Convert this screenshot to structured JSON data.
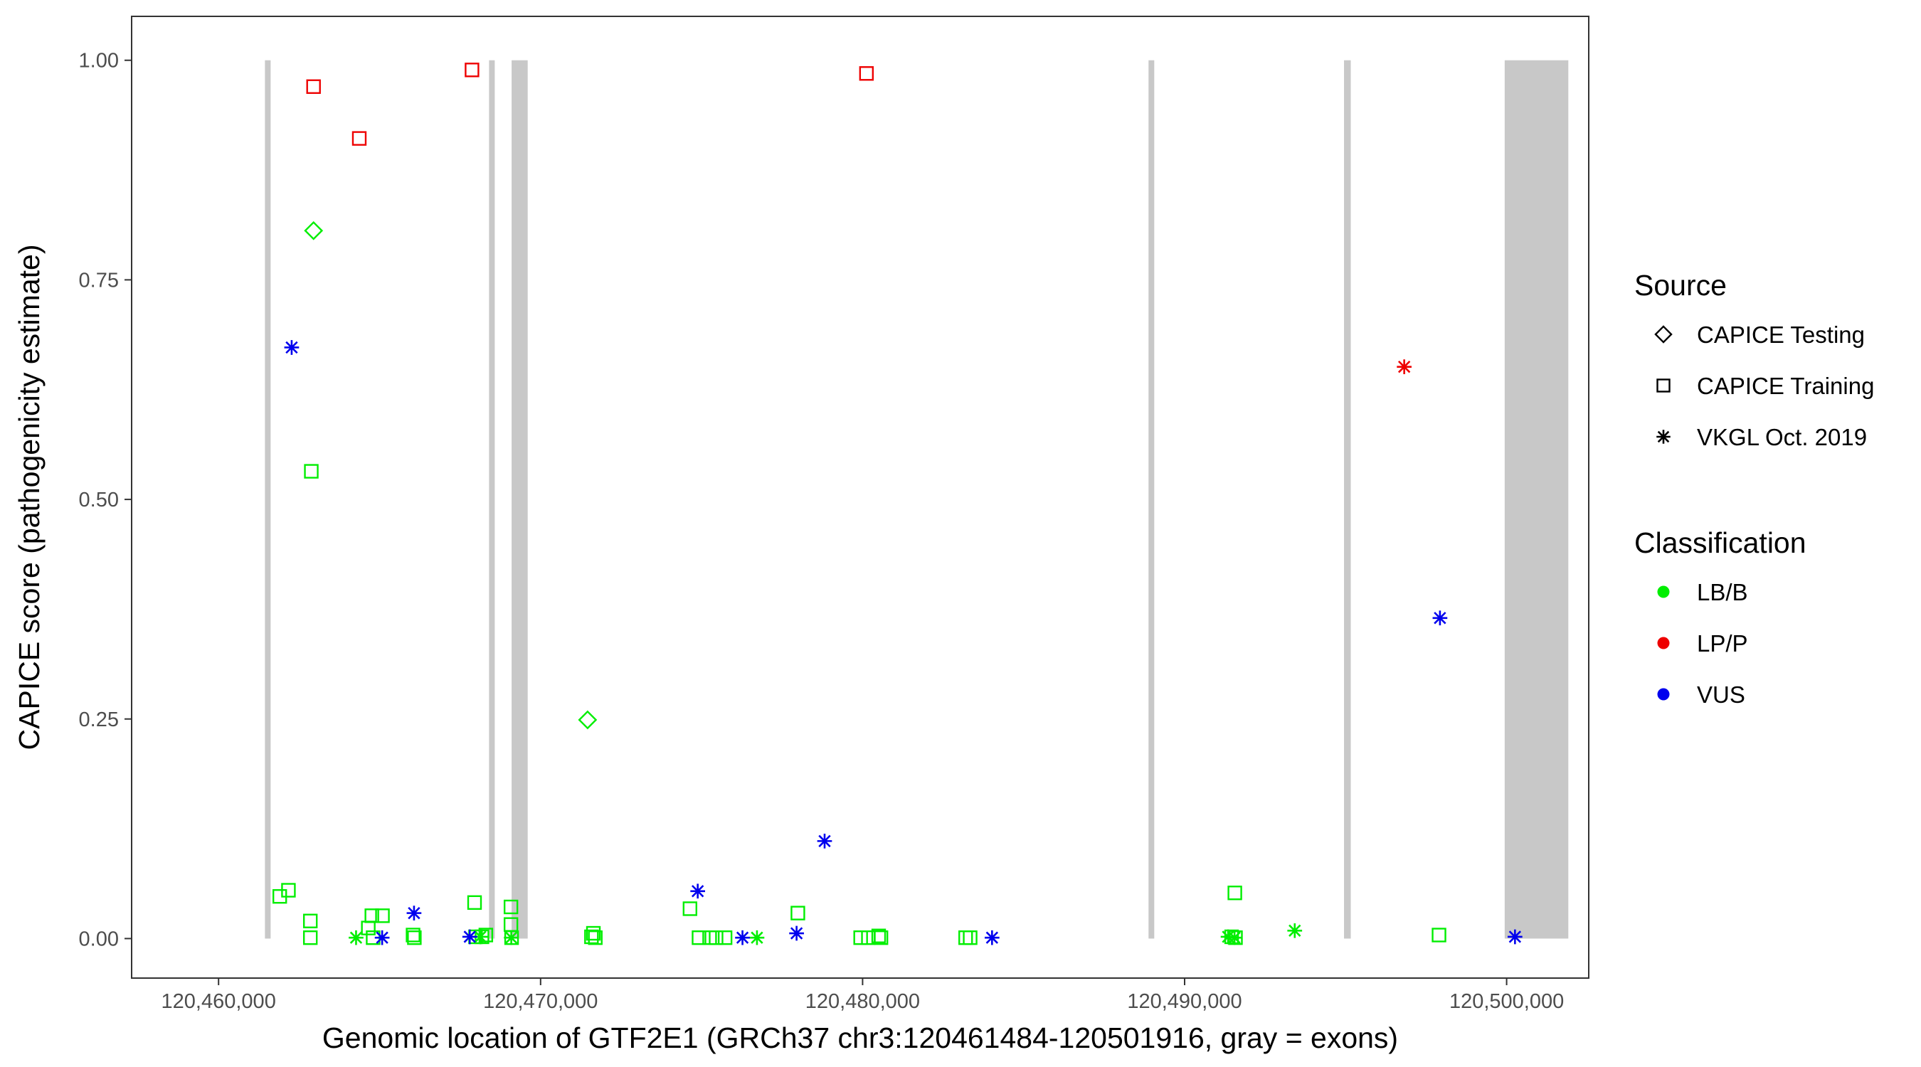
{
  "chart_data": {
    "type": "scatter",
    "title": "",
    "xlabel": "Genomic location of GTF2E1 (GRCh37 chr3:120461484-120501916, gray = exons)",
    "ylabel": "CAPICE score (pathogenicity estimate)",
    "xlim": [
      120457300,
      120502550
    ],
    "ylim": [
      -0.045,
      1.05
    ],
    "x_ticks": [
      120460000,
      120470000,
      120480000,
      120490000,
      120500000
    ],
    "x_tick_labels": [
      "120,460,000",
      "120,470,000",
      "120,480,000",
      "120,490,000",
      "120,500,000"
    ],
    "y_ticks": [
      0,
      0.25,
      0.5,
      0.75,
      1.0
    ],
    "y_tick_labels": [
      "0.00",
      "0.25",
      "0.50",
      "0.75",
      "1.00"
    ],
    "grid": false,
    "legend_position": "right",
    "exons": [
      {
        "start": 120461440,
        "end": 120461560
      },
      {
        "start": 120468400,
        "end": 120468550
      },
      {
        "start": 120469100,
        "end": 120469600
      },
      {
        "start": 120488880,
        "end": 120489030
      },
      {
        "start": 120494950,
        "end": 120495160
      },
      {
        "start": 120499940,
        "end": 120501916
      }
    ],
    "legend": {
      "source_title": "Source",
      "source_items": [
        {
          "label": "CAPICE Testing",
          "shape": "diamond"
        },
        {
          "label": "CAPICE Training",
          "shape": "square"
        },
        {
          "label": "VKGL Oct. 2019",
          "shape": "asterisk"
        }
      ],
      "class_title": "Classification",
      "class_items": [
        {
          "label": "LB/B",
          "color": "#00ee00"
        },
        {
          "label": "LP/P",
          "color": "#ee0000"
        },
        {
          "label": "VUS",
          "color": "#0000ee"
        }
      ]
    },
    "series": [
      {
        "source": "CAPICE Training",
        "classification": "LB/B",
        "points": [
          [
            120461900,
            0.048
          ],
          [
            120462170,
            0.055
          ],
          [
            120462850,
            0.02
          ],
          [
            120462850,
            0.001
          ],
          [
            120462880,
            0.532
          ],
          [
            120464650,
            0.012
          ],
          [
            120464760,
            0.026
          ],
          [
            120464800,
            0.001
          ],
          [
            120465090,
            0.026
          ],
          [
            120466040,
            0.004
          ],
          [
            120466080,
            0.001
          ],
          [
            120467950,
            0.041
          ],
          [
            120467980,
            0.002
          ],
          [
            120468180,
            0.002
          ],
          [
            120468300,
            0.004
          ],
          [
            120469080,
            0.036
          ],
          [
            120469080,
            0.016
          ],
          [
            120469100,
            0.001
          ],
          [
            120471580,
            0.002
          ],
          [
            120471640,
            0.006
          ],
          [
            120471700,
            0.001
          ],
          [
            120474640,
            0.034
          ],
          [
            120474920,
            0.001
          ],
          [
            120475250,
            0.001
          ],
          [
            120475450,
            0.001
          ],
          [
            120475730,
            0.001
          ],
          [
            120477990,
            0.029
          ],
          [
            120479940,
            0.001
          ],
          [
            120480180,
            0.001
          ],
          [
            120480500,
            0.003
          ],
          [
            120480570,
            0.001
          ],
          [
            120483200,
            0.001
          ],
          [
            120483340,
            0.001
          ],
          [
            120491460,
            0.002
          ],
          [
            120491560,
            0.052
          ],
          [
            120491580,
            0.001
          ],
          [
            120497900,
            0.004
          ]
        ]
      },
      {
        "source": "CAPICE Training",
        "classification": "LP/P",
        "points": [
          [
            120462950,
            0.97
          ],
          [
            120464370,
            0.911
          ],
          [
            120467870,
            0.989
          ],
          [
            120480120,
            0.985
          ]
        ]
      },
      {
        "source": "CAPICE Testing",
        "classification": "LB/B",
        "points": [
          [
            120462950,
            0.806
          ],
          [
            120471460,
            0.249
          ]
        ]
      },
      {
        "source": "VKGL Oct. 2019",
        "classification": "LB/B",
        "points": [
          [
            120464270,
            0.001
          ],
          [
            120469090,
            0.001
          ],
          [
            120468130,
            0.002
          ],
          [
            120476720,
            0.001
          ],
          [
            120491350,
            0.002
          ],
          [
            120491550,
            0.001
          ],
          [
            120493420,
            0.009
          ]
        ]
      },
      {
        "source": "VKGL Oct. 2019",
        "classification": "VUS",
        "points": [
          [
            120462270,
            0.673
          ],
          [
            120465080,
            0.001
          ],
          [
            120466070,
            0.029
          ],
          [
            120467800,
            0.002
          ],
          [
            120474880,
            0.054
          ],
          [
            120476270,
            0.001
          ],
          [
            120477950,
            0.006
          ],
          [
            120478820,
            0.111
          ],
          [
            120484020,
            0.001
          ],
          [
            120497930,
            0.365
          ],
          [
            120500260,
            0.002
          ]
        ]
      },
      {
        "source": "VKGL Oct. 2019",
        "classification": "LP/P",
        "points": [
          [
            120496820,
            0.651
          ]
        ]
      }
    ]
  }
}
